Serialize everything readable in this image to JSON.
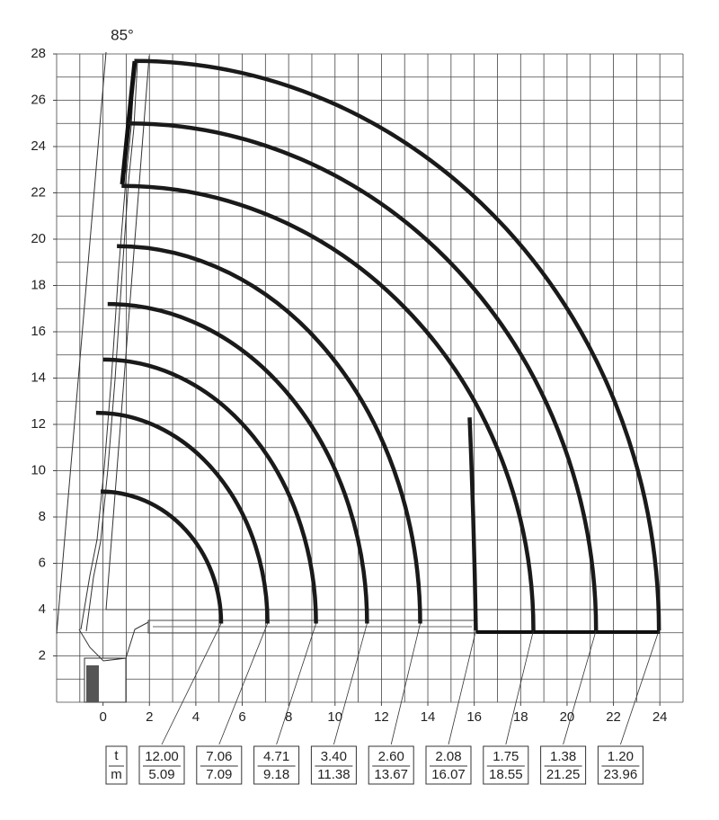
{
  "chart_data": {
    "type": "crane-load-chart",
    "angle_label": "85°",
    "xlim": [
      -2,
      25
    ],
    "ylim": [
      0,
      28
    ],
    "xticks": [
      0,
      2,
      4,
      6,
      8,
      10,
      12,
      14,
      16,
      18,
      20,
      22,
      24
    ],
    "yticks": [
      2,
      4,
      6,
      8,
      10,
      12,
      14,
      16,
      18,
      20,
      22,
      24,
      26,
      28
    ],
    "grid": true,
    "color": "#1a1a1a",
    "series": [
      {
        "name": "t",
        "values": [
          12,
          7.06,
          4.71,
          3.4,
          2.6,
          2.08,
          1.75,
          1.38,
          1.2
        ],
        "value_labels": [
          "12.00",
          "7.06",
          "4.71",
          "3.40",
          "2.60",
          "2.08",
          "1.75",
          "1.38",
          "1.20"
        ]
      },
      {
        "name": "m",
        "values": [
          5.09,
          7.09,
          9.18,
          11.38,
          13.67,
          16.07,
          18.55,
          21.25,
          23.96
        ]
      }
    ],
    "envelopes": [
      {
        "top": 9.1,
        "top_x": -0.1,
        "end_y": 3.4
      },
      {
        "top": 12.5,
        "top_x": -0.3,
        "end_y": 3.4
      },
      {
        "top": 14.8,
        "top_x": 0,
        "end_y": 3.4
      },
      {
        "top": 17.2,
        "top_x": 0.2,
        "end_y": 3.4
      },
      {
        "top": 19.7,
        "top_x": 0.6,
        "end_y": 3.4
      },
      {
        "top": 12.3,
        "top_x": 15.8,
        "end_y": 3.1
      },
      {
        "top": 22.3,
        "top_x": 0.8,
        "end_y": 3.1
      },
      {
        "top": 25,
        "top_x": 1.1,
        "end_y": 3.1
      },
      {
        "top": 27.7,
        "top_x": 1.35,
        "end_y": 3.1
      }
    ]
  }
}
